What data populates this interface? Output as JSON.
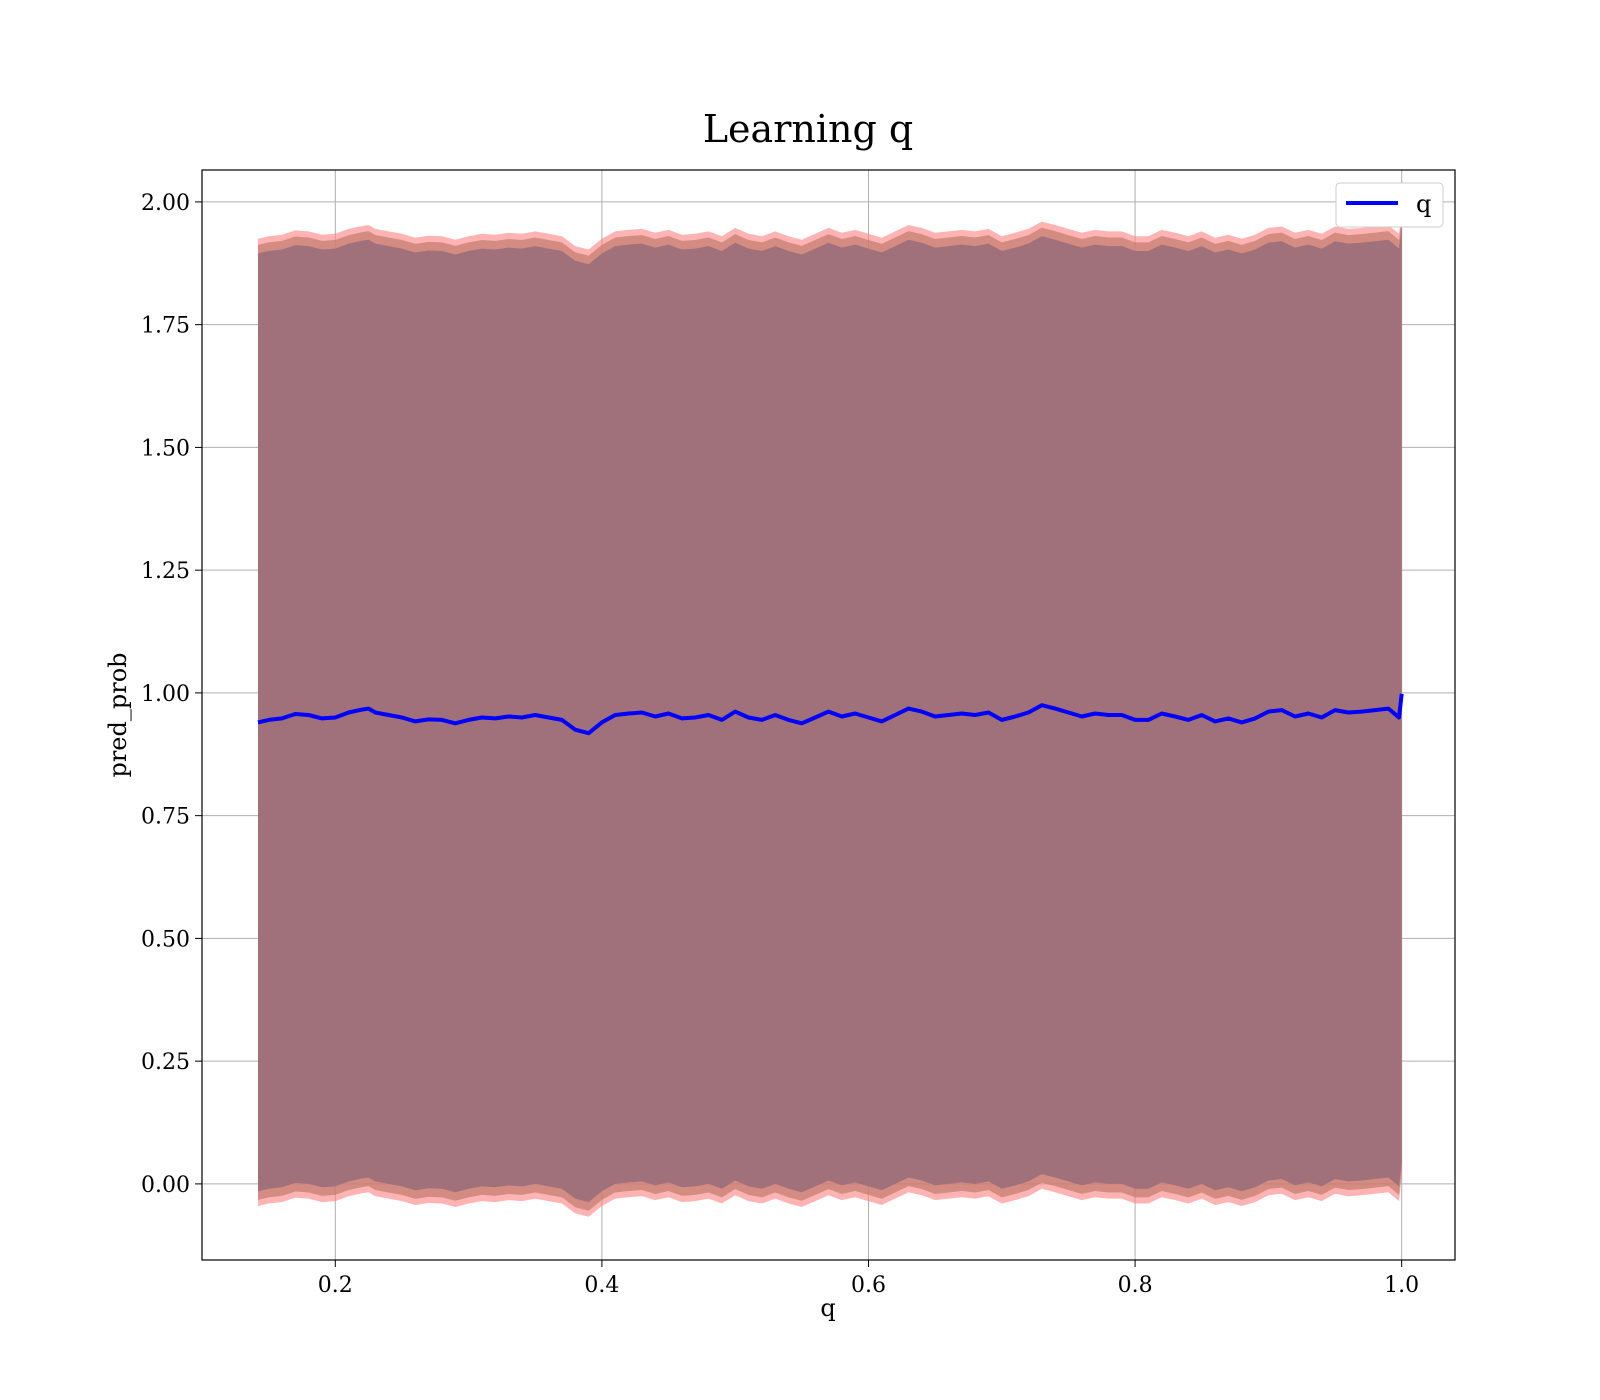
{
  "chart_data": {
    "type": "line",
    "title": "Learning q",
    "xlabel": "q",
    "ylabel": "pred_prob",
    "xlim": [
      0.1,
      1.04
    ],
    "ylim": [
      -0.155,
      2.065
    ],
    "xticks": [
      0.2,
      0.4,
      0.6,
      0.8,
      1.0
    ],
    "xtick_labels": [
      "0.2",
      "0.4",
      "0.6",
      "0.8",
      "1.0"
    ],
    "yticks": [
      0.0,
      0.25,
      0.5,
      0.75,
      1.0,
      1.25,
      1.5,
      1.75,
      2.0
    ],
    "ytick_labels": [
      "0.00",
      "0.25",
      "0.50",
      "0.75",
      "1.00",
      "1.25",
      "1.50",
      "1.75",
      "2.00"
    ],
    "grid": true,
    "legend_position": "top-right",
    "series": [
      {
        "name": "q",
        "color": "#0000ff",
        "x": [
          0.142,
          0.15,
          0.16,
          0.17,
          0.18,
          0.19,
          0.2,
          0.21,
          0.22,
          0.225,
          0.23,
          0.24,
          0.25,
          0.26,
          0.27,
          0.28,
          0.29,
          0.3,
          0.31,
          0.32,
          0.33,
          0.34,
          0.35,
          0.36,
          0.37,
          0.38,
          0.39,
          0.4,
          0.41,
          0.42,
          0.43,
          0.44,
          0.45,
          0.46,
          0.47,
          0.48,
          0.49,
          0.5,
          0.51,
          0.52,
          0.53,
          0.54,
          0.55,
          0.56,
          0.57,
          0.58,
          0.59,
          0.6,
          0.61,
          0.62,
          0.63,
          0.64,
          0.65,
          0.66,
          0.67,
          0.68,
          0.69,
          0.7,
          0.71,
          0.72,
          0.73,
          0.74,
          0.75,
          0.76,
          0.77,
          0.78,
          0.79,
          0.8,
          0.81,
          0.82,
          0.83,
          0.84,
          0.85,
          0.86,
          0.87,
          0.88,
          0.89,
          0.9,
          0.91,
          0.92,
          0.93,
          0.94,
          0.95,
          0.96,
          0.97,
          0.98,
          0.99,
          0.998,
          1.0
        ],
        "values": [
          0.94,
          0.945,
          0.948,
          0.957,
          0.955,
          0.948,
          0.95,
          0.96,
          0.966,
          0.968,
          0.96,
          0.955,
          0.95,
          0.942,
          0.946,
          0.945,
          0.938,
          0.945,
          0.95,
          0.948,
          0.952,
          0.95,
          0.955,
          0.95,
          0.945,
          0.925,
          0.918,
          0.94,
          0.955,
          0.958,
          0.96,
          0.952,
          0.958,
          0.948,
          0.95,
          0.955,
          0.945,
          0.962,
          0.95,
          0.945,
          0.955,
          0.945,
          0.938,
          0.95,
          0.962,
          0.952,
          0.958,
          0.95,
          0.942,
          0.955,
          0.968,
          0.962,
          0.952,
          0.955,
          0.958,
          0.955,
          0.96,
          0.945,
          0.952,
          0.96,
          0.975,
          0.968,
          0.96,
          0.952,
          0.958,
          0.955,
          0.955,
          0.945,
          0.945,
          0.958,
          0.952,
          0.945,
          0.955,
          0.942,
          0.948,
          0.94,
          0.948,
          0.962,
          0.965,
          0.952,
          0.958,
          0.95,
          0.965,
          0.96,
          0.962,
          0.965,
          0.968,
          0.95,
          0.998
        ]
      }
    ],
    "band_half_width": 0.96,
    "band_spread": 0.025
  }
}
